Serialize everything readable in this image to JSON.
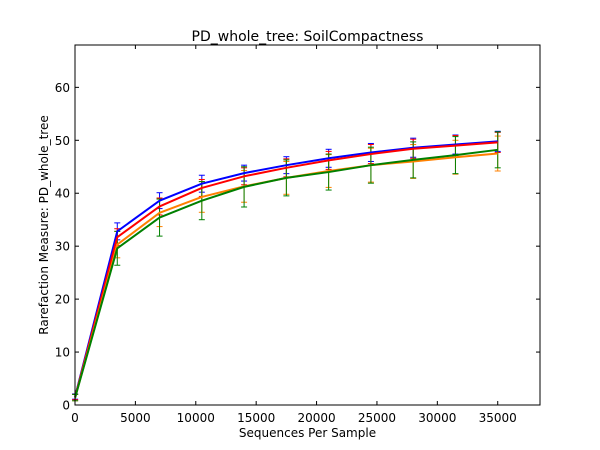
{
  "chart_data": {
    "type": "line",
    "title": "PD_whole_tree: SoilCompactness",
    "xlabel": "Sequences Per Sample",
    "ylabel": "Rarefaction Measure: PD_whole_tree",
    "xlim": [
      0,
      38500
    ],
    "ylim": [
      0,
      68
    ],
    "xticks": [
      0,
      5000,
      10000,
      15000,
      20000,
      25000,
      30000,
      35000
    ],
    "yticks": [
      0,
      10,
      20,
      30,
      40,
      50,
      60
    ],
    "x": [
      10,
      3500,
      7000,
      10500,
      14000,
      17500,
      21000,
      24500,
      28000,
      31500,
      35000
    ],
    "grid": false,
    "series": [
      {
        "color": "#0000ff",
        "values": [
          1.6,
          32.8,
          38.6,
          41.8,
          43.8,
          45.3,
          46.6,
          47.7,
          48.6,
          49.2,
          49.8
        ],
        "errors": [
          0.5,
          1.6,
          1.5,
          1.6,
          1.5,
          1.6,
          1.7,
          1.7,
          1.8,
          1.8,
          1.9
        ]
      },
      {
        "color": "#ff0000",
        "values": [
          1.5,
          31.7,
          37.5,
          41.0,
          43.2,
          44.8,
          46.2,
          47.4,
          48.4,
          49.0,
          49.6
        ],
        "errors": [
          0.5,
          1.6,
          1.6,
          1.6,
          1.6,
          1.7,
          1.7,
          1.8,
          1.8,
          1.9,
          1.9
        ]
      },
      {
        "color": "#ff8000",
        "values": [
          1.4,
          30.3,
          36.3,
          39.3,
          41.3,
          42.9,
          44.2,
          45.3,
          46.0,
          46.8,
          47.5
        ],
        "errors": [
          0.6,
          2.5,
          2.6,
          2.9,
          3.0,
          3.1,
          3.1,
          3.2,
          3.2,
          3.2,
          3.3
        ]
      },
      {
        "color": "#008000",
        "values": [
          1.4,
          29.6,
          35.4,
          38.6,
          41.2,
          42.9,
          44.0,
          45.3,
          46.3,
          47.2,
          48.2
        ],
        "errors": [
          0.6,
          3.2,
          3.5,
          3.6,
          3.8,
          3.4,
          3.4,
          3.4,
          3.4,
          3.5,
          3.4
        ]
      }
    ]
  }
}
